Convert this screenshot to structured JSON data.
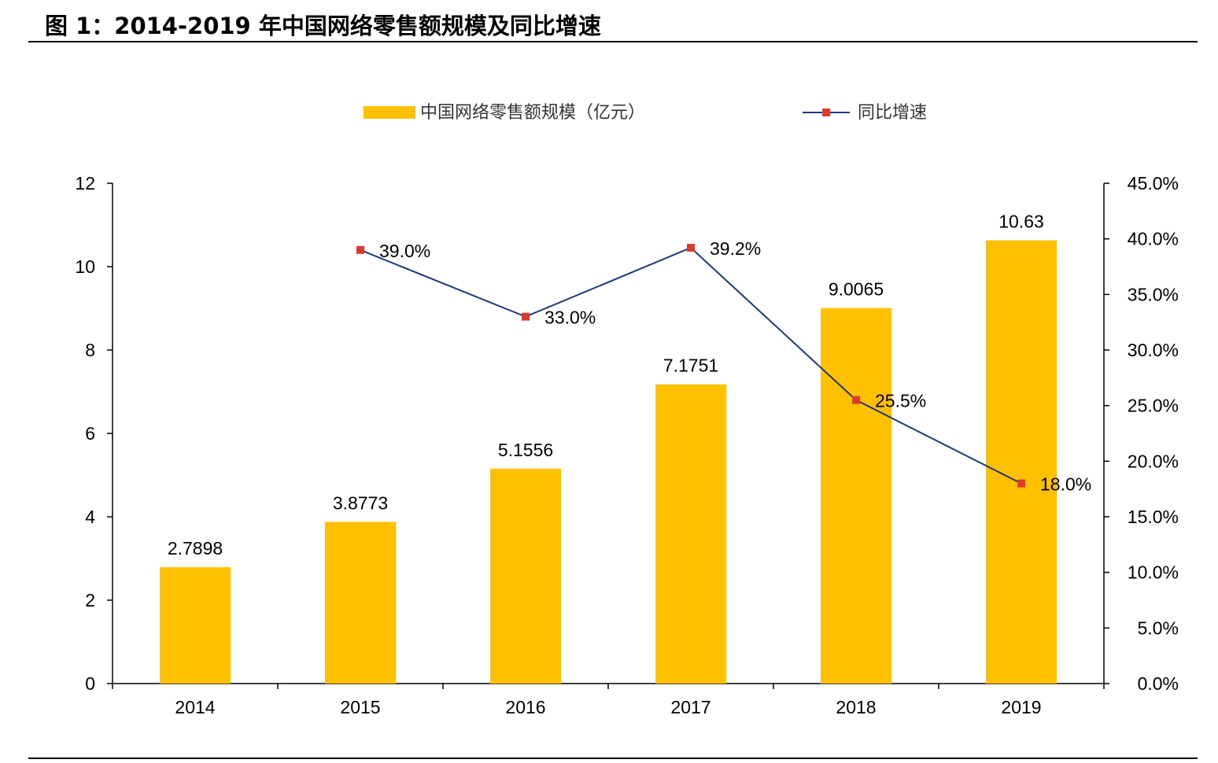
{
  "header": {
    "title": "图 1：2014-2019 年中国网络零售额规模及同比增速"
  },
  "colors": {
    "bar": "#FFC000",
    "line": "#1F3A7A",
    "marker": "#E03A2E",
    "axis": "#000000",
    "text": "#000000"
  },
  "chart_data": {
    "type": "bar",
    "title": "",
    "categories": [
      "2014",
      "2015",
      "2016",
      "2017",
      "2018",
      "2019"
    ],
    "series": [
      {
        "name": "中国网络零售额规模（亿元）",
        "type": "bar",
        "axis": "left",
        "values": [
          2.7898,
          3.8773,
          5.1556,
          7.1751,
          9.0065,
          10.63
        ],
        "labels": [
          "2.7898",
          "3.8773",
          "5.1556",
          "7.1751",
          "9.0065",
          "10.63"
        ]
      },
      {
        "name": "同比增速",
        "type": "line",
        "axis": "right",
        "values": [
          null,
          39.0,
          33.0,
          39.2,
          25.5,
          18.0
        ],
        "labels": [
          "",
          "39.0%",
          "33.0%",
          "39.2%",
          "25.5%",
          "18.0%"
        ]
      }
    ],
    "y_left": {
      "min": 0,
      "max": 12,
      "ticks": [
        "0",
        "2",
        "4",
        "6",
        "8",
        "10",
        "12"
      ]
    },
    "y_right": {
      "min": 0,
      "max": 45,
      "ticks": [
        "0.0%",
        "5.0%",
        "10.0%",
        "15.0%",
        "20.0%",
        "25.0%",
        "30.0%",
        "35.0%",
        "40.0%",
        "45.0%"
      ]
    },
    "legend_position": "top-center",
    "grid": false
  }
}
